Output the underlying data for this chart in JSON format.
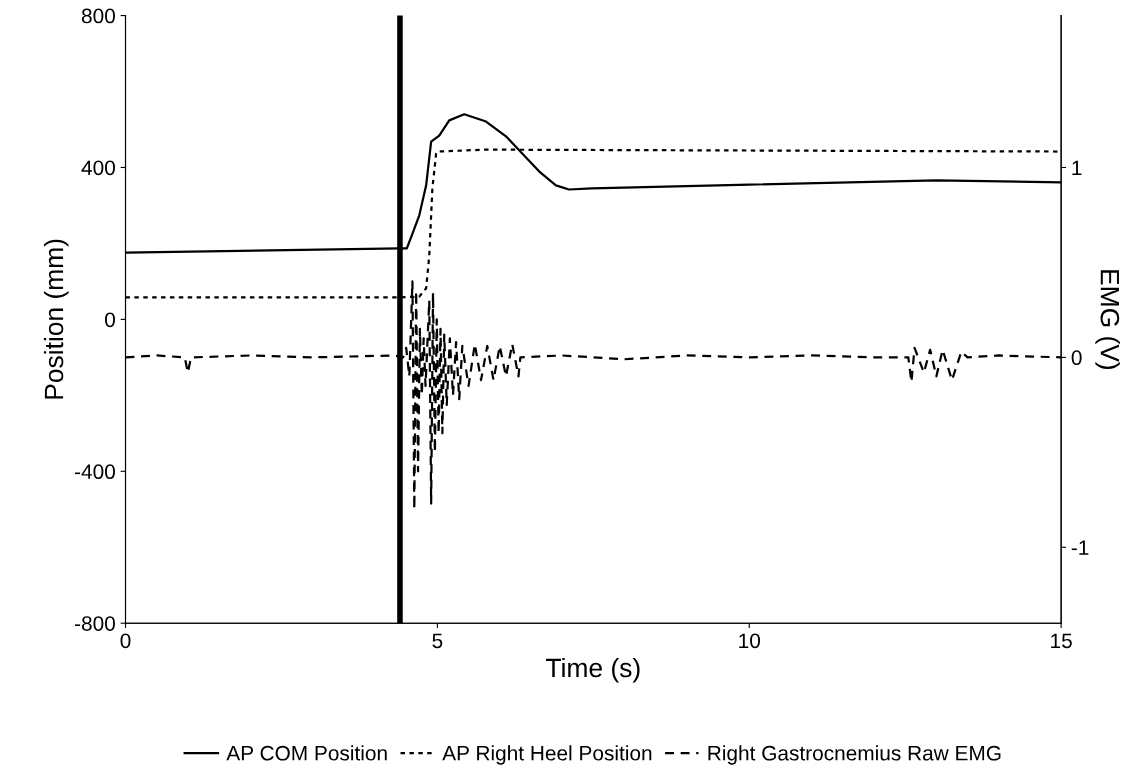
{
  "chart_data": {
    "type": "line",
    "xlabel": "Time (s)",
    "ylabel": "Position (mm)",
    "y2label": "EMG (V)",
    "xlim": [
      0,
      15
    ],
    "xticks": [
      0,
      5,
      10,
      15
    ],
    "ylim": [
      -800,
      800
    ],
    "yticks": [
      {
        "value": -800,
        "label": "-800"
      },
      {
        "value": -400,
        "label": "-400"
      },
      0,
      400,
      800
    ],
    "y2lim": [
      -1.4,
      1.8
    ],
    "y2ticks": [
      {
        "value": -1,
        "label": "-1"
      },
      0,
      1
    ],
    "legend": "bottom",
    "grid": false,
    "marker": "none",
    "ref_lines": [
      {
        "axis": "x",
        "value": 4.4,
        "color": "#000000",
        "line_style": "solid"
      }
    ],
    "series": [
      {
        "name": "AP COM Position",
        "color": "#000000",
        "line_style": "solid",
        "x": [
          0,
          4.4,
          4.51,
          4.59,
          4.71,
          4.82,
          4.9,
          5.03,
          5.19,
          5.43,
          5.78,
          6.1,
          6.36,
          6.63,
          6.9,
          7.11,
          7.48,
          10,
          13,
          15
        ],
        "values": [
          176,
          187,
          187,
          221,
          274,
          353,
          468,
          484,
          524,
          540,
          521,
          482,
          437,
          390,
          353,
          342,
          345,
          355,
          366,
          361
        ]
      },
      {
        "name": "AP Right Heel Position",
        "color": "#000000",
        "line_style": "dotted",
        "x": [
          0,
          4.4,
          4.71,
          4.82,
          4.87,
          4.92,
          4.98,
          5.0,
          5.78,
          15
        ],
        "values": [
          58,
          58,
          60,
          82,
          168,
          345,
          437,
          442,
          447,
          442
        ]
      },
      {
        "name": "Right Gastrocnemius Raw EMG",
        "color": "#000000",
        "line_style": "dashed",
        "axis": "y2",
        "x": [
          0,
          0.5,
          0.95,
          1.0,
          1.05,
          2,
          3,
          4.3,
          4.45,
          4.5,
          4.55,
          4.6,
          4.63,
          4.66,
          4.69,
          4.72,
          4.75,
          4.78,
          4.81,
          4.87,
          4.9,
          4.93,
          4.96,
          4.99,
          5.02,
          5.05,
          5.08,
          5.11,
          5.15,
          5.2,
          5.25,
          5.3,
          5.35,
          5.4,
          5.5,
          5.6,
          5.7,
          5.8,
          5.9,
          6.0,
          6.1,
          6.2,
          6.3,
          6.33,
          7,
          8,
          9,
          10,
          11,
          12,
          12.55,
          12.6,
          12.65,
          12.8,
          12.9,
          13.0,
          13.1,
          13.25,
          13.4,
          13.5,
          14,
          15
        ],
        "values": [
          0,
          0.01,
          0,
          -0.08,
          0,
          0.01,
          0,
          0.01,
          0,
          0.05,
          -0.1,
          0.4,
          -0.8,
          0.35,
          -0.6,
          0.15,
          -0.2,
          0.1,
          -0.15,
          0.3,
          -0.77,
          0.34,
          -0.5,
          0.2,
          -0.4,
          0.15,
          -0.4,
          0.12,
          -0.25,
          0.1,
          -0.2,
          0.08,
          -0.22,
          0.06,
          -0.15,
          0.07,
          -0.12,
          0.06,
          -0.12,
          0.06,
          -0.1,
          0.07,
          -0.1,
          0,
          0.01,
          -0.01,
          0.01,
          0,
          0.01,
          0,
          0,
          -0.13,
          0.05,
          -0.08,
          0.04,
          -0.1,
          0.04,
          -0.12,
          0.03,
          0,
          0.01,
          0
        ]
      }
    ]
  }
}
